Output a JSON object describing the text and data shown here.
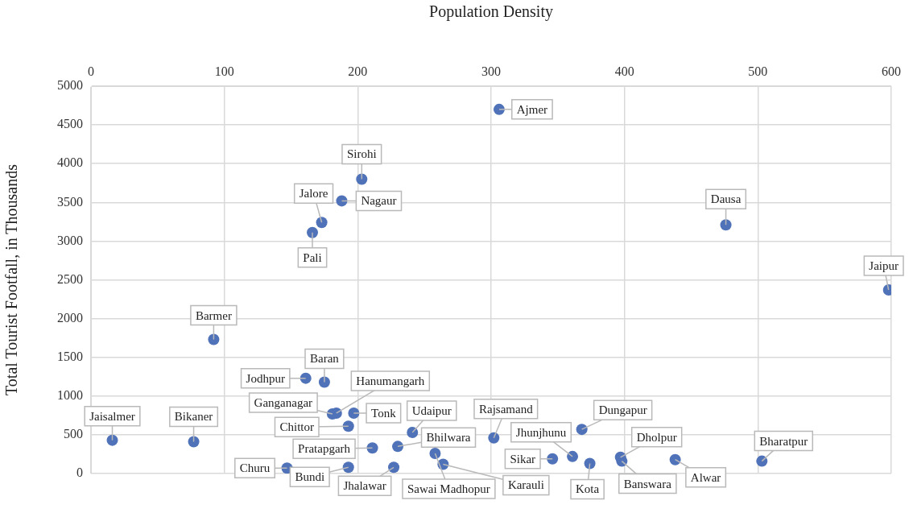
{
  "chart_data": {
    "type": "scatter",
    "xlabel": "Population Density",
    "ylabel": "Total Tourist Footfall, in Thousands",
    "xlim": [
      0,
      600
    ],
    "xticks": [
      0,
      100,
      200,
      300,
      400,
      500,
      600
    ],
    "ylim": [
      0,
      5000
    ],
    "yticks": [
      0,
      500,
      1000,
      1500,
      2000,
      2500,
      3000,
      3500,
      4000,
      4500,
      5000
    ],
    "grid": true,
    "legend": false,
    "marker": "circle",
    "series": [
      {
        "name": "Ajmer",
        "color": "#4f72b8",
        "x": [
          306
        ],
        "values": [
          4700
        ]
      },
      {
        "name": "Sirohi",
        "color": "#4f72b8",
        "x": [
          203
        ],
        "values": [
          3800
        ]
      },
      {
        "name": "Nagaur",
        "color": "#4f72b8",
        "x": [
          188
        ],
        "values": [
          3520
        ]
      },
      {
        "name": "Jalore",
        "color": "#4f72b8",
        "x": [
          173
        ],
        "values": [
          3240
        ]
      },
      {
        "name": "Pali",
        "color": "#4f72b8",
        "x": [
          166
        ],
        "values": [
          3110
        ]
      },
      {
        "name": "Barmer",
        "color": "#4f72b8",
        "x": [
          92
        ],
        "values": [
          1730
        ]
      },
      {
        "name": "Dausa",
        "color": "#4f72b8",
        "x": [
          476
        ],
        "values": [
          3210
        ]
      },
      {
        "name": "Jaipur",
        "color": "#4f72b8",
        "x": [
          598
        ],
        "values": [
          2370
        ]
      },
      {
        "name": "Bharatpur",
        "color": "#4f72b8",
        "x": [
          503
        ],
        "values": [
          160
        ]
      },
      {
        "name": "Dungapur",
        "color": "#4f72b8",
        "x": [
          368
        ],
        "values": [
          570
        ]
      },
      {
        "name": "Dholpur",
        "color": "#4f72b8",
        "x": [
          397
        ],
        "values": [
          210
        ]
      },
      {
        "name": "Banswara",
        "color": "#4f72b8",
        "x": [
          398
        ],
        "values": [
          160
        ]
      },
      {
        "name": "Alwar",
        "color": "#4f72b8",
        "x": [
          438
        ],
        "values": [
          180
        ]
      },
      {
        "name": "Kota",
        "color": "#4f72b8",
        "x": [
          374
        ],
        "values": [
          130
        ]
      },
      {
        "name": "Jhunjhunu",
        "color": "#4f72b8",
        "x": [
          361
        ],
        "values": [
          220
        ]
      },
      {
        "name": "Sikar",
        "color": "#4f72b8",
        "x": [
          346
        ],
        "values": [
          190
        ]
      },
      {
        "name": "Rajsamand",
        "color": "#4f72b8",
        "x": [
          302
        ],
        "values": [
          460
        ]
      },
      {
        "name": "Karauli",
        "color": "#4f72b8",
        "x": [
          264
        ],
        "values": [
          120
        ]
      },
      {
        "name": "Sawai Madhopur",
        "color": "#4f72b8",
        "x": [
          258
        ],
        "values": [
          260
        ]
      },
      {
        "name": "Bhilwara",
        "color": "#4f72b8",
        "x": [
          230
        ],
        "values": [
          350
        ]
      },
      {
        "name": "Udaipur",
        "color": "#4f72b8",
        "x": [
          241
        ],
        "values": [
          530
        ]
      },
      {
        "name": "Pratapgarh",
        "color": "#4f72b8",
        "x": [
          211
        ],
        "values": [
          330
        ]
      },
      {
        "name": "Jhalawar",
        "color": "#4f72b8",
        "x": [
          227
        ],
        "values": [
          80
        ]
      },
      {
        "name": "Bundi",
        "color": "#4f72b8",
        "x": [
          193
        ],
        "values": [
          80
        ]
      },
      {
        "name": "Churu",
        "color": "#4f72b8",
        "x": [
          147
        ],
        "values": [
          70
        ]
      },
      {
        "name": "Chittor",
        "color": "#4f72b8",
        "x": [
          193
        ],
        "values": [
          610
        ]
      },
      {
        "name": "Tonk",
        "color": "#4f72b8",
        "x": [
          197
        ],
        "values": [
          780
        ]
      },
      {
        "name": "Ganganagar",
        "color": "#4f72b8",
        "x": [
          181
        ],
        "values": [
          770
        ]
      },
      {
        "name": "Hanumangarh",
        "color": "#4f72b8",
        "x": [
          184
        ],
        "values": [
          780
        ]
      },
      {
        "name": "Jodhpur",
        "color": "#4f72b8",
        "x": [
          161
        ],
        "values": [
          1230
        ]
      },
      {
        "name": "Baran",
        "color": "#4f72b8",
        "x": [
          175
        ],
        "values": [
          1180
        ]
      },
      {
        "name": "Jaisalmer",
        "color": "#4f72b8",
        "x": [
          16
        ],
        "values": [
          430
        ]
      },
      {
        "name": "Bikaner",
        "color": "#4f72b8",
        "x": [
          77
        ],
        "values": [
          410
        ]
      }
    ]
  }
}
